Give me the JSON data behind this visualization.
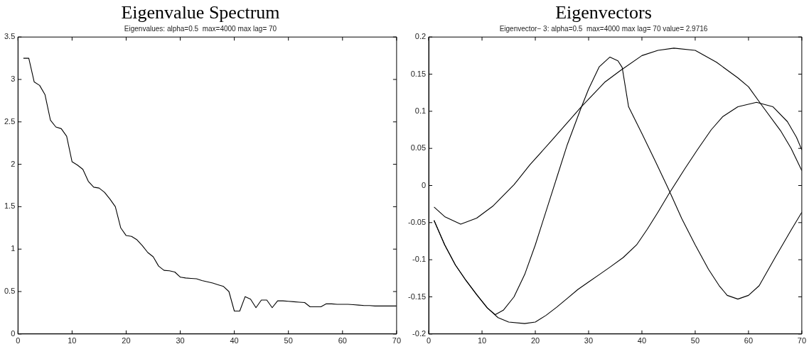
{
  "chart_data": [
    {
      "type": "line",
      "title": "Eigenvalue Spectrum",
      "subtitle": "Eigenvalues: alpha=0.5  max=4000 max lag= 70",
      "x": [
        1,
        2,
        3,
        4,
        5,
        6,
        7,
        8,
        9,
        10,
        11,
        12,
        13,
        14,
        15,
        16,
        17,
        18,
        19,
        20,
        21,
        22,
        23,
        24,
        25,
        26,
        27,
        28,
        29,
        30,
        31,
        32,
        33,
        34,
        35,
        36,
        37,
        38,
        39,
        40,
        41,
        42,
        43,
        44,
        45,
        46,
        47,
        48,
        49,
        50,
        51,
        52,
        53,
        54,
        55,
        56,
        57,
        58,
        59,
        60,
        61,
        62,
        63,
        64,
        65,
        66,
        67,
        68,
        69,
        70
      ],
      "series": [
        {
          "color": "#000000",
          "values": [
            3.25,
            3.25,
            2.97,
            2.93,
            2.82,
            2.52,
            2.44,
            2.42,
            2.33,
            2.03,
            1.99,
            1.94,
            1.8,
            1.73,
            1.72,
            1.67,
            1.59,
            1.5,
            1.25,
            1.16,
            1.15,
            1.11,
            1.04,
            0.96,
            0.91,
            0.8,
            0.75,
            0.745,
            0.73,
            0.67,
            0.66,
            0.655,
            0.65,
            0.63,
            0.615,
            0.6,
            0.58,
            0.56,
            0.5,
            0.27,
            0.27,
            0.44,
            0.41,
            0.31,
            0.4,
            0.4,
            0.31,
            0.39,
            0.39,
            0.385,
            0.38,
            0.375,
            0.37,
            0.32,
            0.32,
            0.32,
            0.355,
            0.355,
            0.35,
            0.35,
            0.35,
            0.345,
            0.34,
            0.335,
            0.335,
            0.33,
            0.33,
            0.33,
            0.33,
            0.33
          ]
        }
      ],
      "xlim": [
        0,
        70
      ],
      "xticks": [
        0,
        10,
        20,
        30,
        40,
        50,
        60,
        70
      ],
      "ylim": [
        0,
        3.5
      ],
      "yticks": [
        0,
        0.5,
        1,
        1.5,
        2,
        2.5,
        3,
        3.5
      ],
      "grid": false,
      "legend": false,
      "marker": "none",
      "line_style": "solid"
    },
    {
      "type": "line",
      "title": "Eigenvectors",
      "subtitle": "Eigenvector− 3: alpha=0.5  max=4000 max lag= 70 value= 2.9716",
      "series": [
        {
          "color": "#000000",
          "x": [
            1,
            3,
            6,
            9,
            12,
            16,
            19,
            23,
            28.5,
            33,
            36,
            40,
            43,
            46,
            50,
            54,
            58,
            60,
            62.5,
            66,
            68,
            70
          ],
          "values": [
            -0.029,
            -0.042,
            -0.052,
            -0.044,
            -0.028,
            0.001,
            0.028,
            0.06,
            0.105,
            0.139,
            0.155,
            0.175,
            0.182,
            0.185,
            0.182,
            0.166,
            0.145,
            0.133,
            0.108,
            0.074,
            0.05,
            0.02
          ]
        },
        {
          "color": "#000000",
          "x": [
            1,
            3,
            5,
            7,
            9,
            11,
            12.5,
            14,
            16,
            18,
            20,
            22,
            24,
            26,
            28.5,
            30,
            32,
            34,
            35.5,
            36.3,
            37.5,
            40,
            42.5,
            45,
            47.5,
            50,
            52.5,
            54.5,
            56,
            58,
            60,
            62,
            65,
            68,
            70
          ],
          "values": [
            -0.047,
            -0.08,
            -0.107,
            -0.128,
            -0.147,
            -0.165,
            -0.174,
            -0.168,
            -0.15,
            -0.12,
            -0.08,
            -0.035,
            0.01,
            0.055,
            0.103,
            0.13,
            0.16,
            0.173,
            0.168,
            0.159,
            0.106,
            0.07,
            0.033,
            -0.005,
            -0.045,
            -0.08,
            -0.113,
            -0.135,
            -0.148,
            -0.153,
            -0.148,
            -0.135,
            -0.097,
            -0.06,
            -0.036
          ]
        },
        {
          "color": "#000000",
          "x": [
            1,
            3,
            5,
            7,
            9,
            11,
            13,
            15,
            18,
            20,
            22,
            24,
            26,
            28,
            30,
            32,
            34,
            36.5,
            39,
            41,
            43,
            45,
            48,
            50.4,
            53,
            55.2,
            58,
            61.5,
            64.6,
            67.3,
            69,
            70
          ],
          "values": [
            -0.047,
            -0.08,
            -0.107,
            -0.128,
            -0.147,
            -0.165,
            -0.178,
            -0.184,
            -0.186,
            -0.184,
            -0.175,
            -0.164,
            -0.152,
            -0.14,
            -0.13,
            -0.12,
            -0.11,
            -0.097,
            -0.08,
            -0.059,
            -0.036,
            -0.012,
            0.022,
            0.048,
            0.075,
            0.093,
            0.106,
            0.112,
            0.106,
            0.086,
            0.065,
            0.048
          ]
        }
      ],
      "xlim": [
        0,
        70
      ],
      "xticks": [
        0,
        10,
        20,
        30,
        40,
        50,
        60,
        70
      ],
      "ylim": [
        -0.2,
        0.2
      ],
      "yticks": [
        -0.2,
        -0.15,
        -0.1,
        -0.05,
        0,
        0.05,
        0.1,
        0.15,
        0.2
      ],
      "grid": false,
      "legend": false,
      "marker": "none",
      "line_style": "solid"
    }
  ]
}
